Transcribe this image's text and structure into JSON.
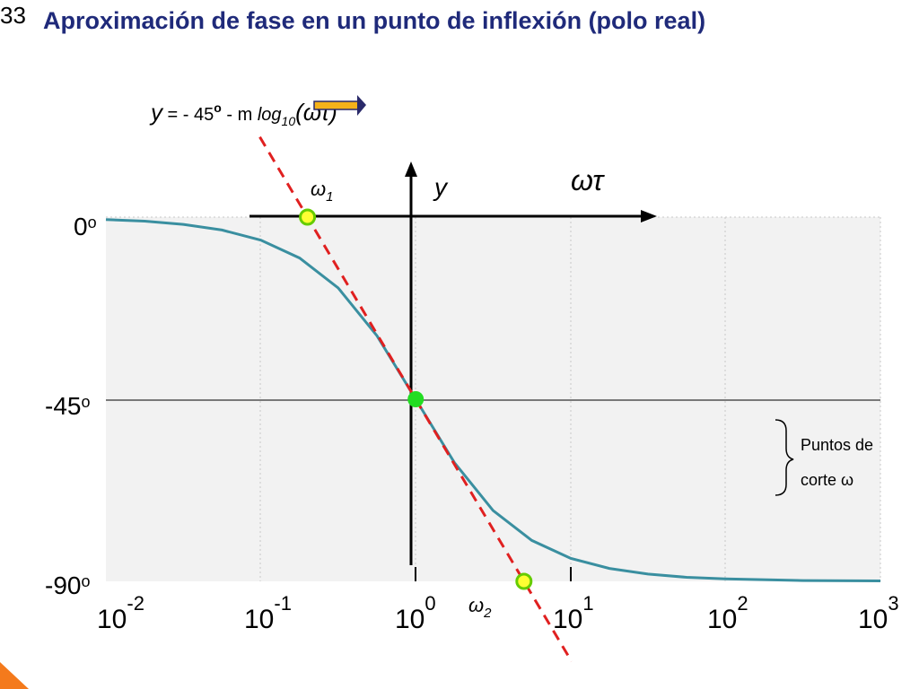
{
  "slide": {
    "number": "33",
    "title": "Aproximación de fase en un punto de inflexión (polo real)"
  },
  "formula": {
    "y": "y",
    "eq": " = - 45",
    "deg": "o",
    "minus_m": " - m ",
    "log": "log",
    "log_sub": "10",
    "arg": "(ωτ)"
  },
  "axes_overlay": {
    "y_label": "y",
    "x_label": "ωτ",
    "omega1": "ω",
    "omega1_sub": "1",
    "omega2": "ω",
    "omega2_sub": "2"
  },
  "brace_note": {
    "line1": "Puntos de",
    "line2": "corte ω"
  },
  "colors": {
    "title": "#1f2a7a",
    "curve": "#3a8fa0",
    "asymptote": "#e02020",
    "point_center": "#22dd22",
    "point_cut_fill": "#ffff33",
    "point_cut_stroke": "#66cc00",
    "plot_bg": "#f2f2f2",
    "arrow_fill": "#f5b21a"
  },
  "chart_data": {
    "type": "line",
    "x_scale": "log",
    "xlim": [
      0.01,
      1000
    ],
    "ylim": [
      -90,
      0
    ],
    "x_ticks": [
      {
        "value": 0.01,
        "base": "10",
        "exp": "-2"
      },
      {
        "value": 0.1,
        "base": "10",
        "exp": "-1"
      },
      {
        "value": 1,
        "base": "10",
        "exp": "0"
      },
      {
        "value": 10,
        "base": "10",
        "exp": "1"
      },
      {
        "value": 100,
        "base": "10",
        "exp": "2"
      },
      {
        "value": 1000,
        "base": "10",
        "exp": "3"
      }
    ],
    "y_ticks": [
      {
        "value": 0,
        "text": "0",
        "sup": "o"
      },
      {
        "value": -45,
        "text": "-45",
        "sup": "o"
      },
      {
        "value": -90,
        "text": "-90",
        "sup": "o"
      }
    ],
    "series": [
      {
        "values": [
          [
            0.01,
            -0.6
          ],
          [
            0.0178,
            -1.0
          ],
          [
            0.0316,
            -1.8
          ],
          [
            0.0562,
            -3.2
          ],
          [
            0.1,
            -5.7
          ],
          [
            0.178,
            -10.1
          ],
          [
            0.316,
            -17.5
          ],
          [
            0.562,
            -29.3
          ],
          [
            1,
            -45
          ],
          [
            1.78,
            -60.7
          ],
          [
            3.16,
            -72.5
          ],
          [
            5.62,
            -79.9
          ],
          [
            10,
            -84.3
          ],
          [
            17.8,
            -86.8
          ],
          [
            31.6,
            -88.2
          ],
          [
            56.2,
            -89.0
          ],
          [
            100,
            -89.4
          ],
          [
            316,
            -89.8
          ],
          [
            1000,
            -89.9
          ]
        ]
      }
    ],
    "asymptote": {
      "x1": 0.2,
      "x2": 5,
      "y1": 0,
      "y2": -90
    },
    "points": [
      {
        "x": 1,
        "y": -45,
        "kind": "center"
      },
      {
        "x": 0.2,
        "y": 0,
        "kind": "cut"
      },
      {
        "x": 5,
        "y": -90,
        "kind": "cut"
      }
    ]
  }
}
